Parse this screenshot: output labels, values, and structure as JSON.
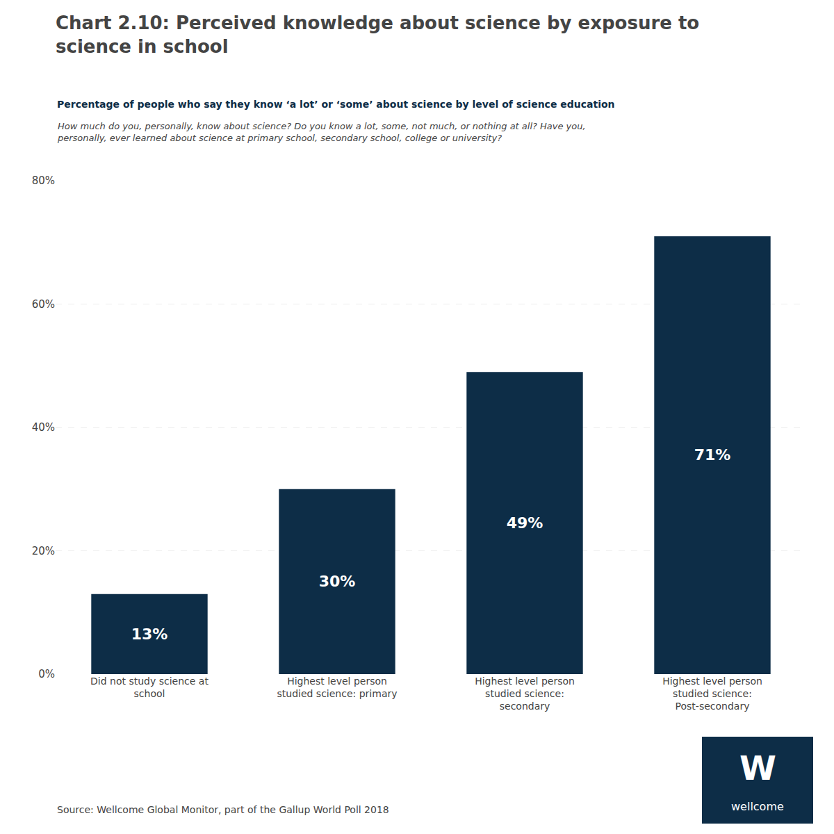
{
  "chart_data": {
    "type": "bar",
    "title": "Chart 2.10: Perceived knowledge about science by exposure to\nscience in school",
    "subtitle": "Percentage of people who say they know ‘a lot’ or ‘some’ about science by level of science education",
    "annotations": [
      "How much do you, personally, know about science? Do you know a lot, some, not much, or nothing at all? Have you,\npersonally, ever learned about science at primary school, secondary school, college or university?",
      "Source: Wellcome Global Monitor, part of the Gallup World Poll 2018",
      "W",
      "wellcome"
    ],
    "categories": [
      "Did not study science at\nschool",
      "Highest level person\nstudied science: primary",
      "Highest level person\nstudied science:\nsecondary",
      "Highest level person\nstudied science:\nPost-secondary"
    ],
    "values": [
      13,
      30,
      49,
      71
    ],
    "value_labels": [
      "13%",
      "30%",
      "49%",
      "71%"
    ],
    "data_labels": true,
    "color": "#0d2d47",
    "ylim": [
      0,
      80
    ],
    "yticks": [
      {
        "value": 0,
        "label": "0%"
      },
      {
        "value": 20,
        "label": "20%"
      },
      {
        "value": 40,
        "label": "40%"
      },
      {
        "value": 60,
        "label": "60%"
      },
      {
        "value": 80,
        "label": "80%"
      }
    ],
    "grid": true
  }
}
